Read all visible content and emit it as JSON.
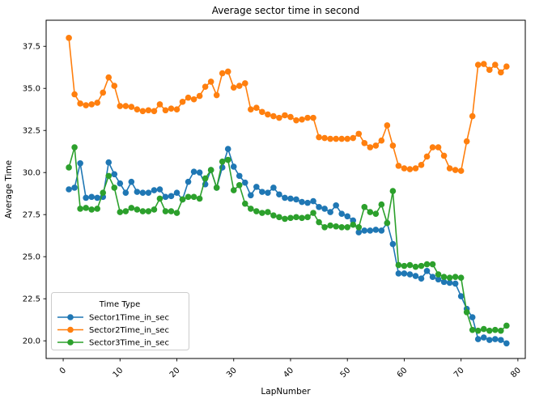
{
  "figure": {
    "title": "Average sector time in second",
    "xlabel": "LapNumber",
    "ylabel": "Average Time",
    "background_color": "#ffffff",
    "spine_color": "#000000"
  },
  "legend": {
    "title": "Time Type",
    "entries": [
      {
        "label": "Sector1Time_in_sec"
      },
      {
        "label": "Sector2Time_in_sec"
      },
      {
        "label": "Sector3Time_in_sec"
      }
    ]
  },
  "chart_data": {
    "type": "line",
    "title": "Average sector time in second",
    "xlabel": "LapNumber",
    "ylabel": "Average Time",
    "marker": "o",
    "grid": false,
    "legend_position": "lower left",
    "xlim": [
      -3.0,
      81.3
    ],
    "ylim": [
      18.95,
      39.05
    ],
    "x_ticks": [
      0,
      10,
      20,
      30,
      40,
      50,
      60,
      70,
      80
    ],
    "y_ticks": [
      "20.0",
      "22.5",
      "25.0",
      "27.5",
      "30.0",
      "32.5",
      "35.0",
      "37.5"
    ],
    "y_tick_values": [
      20.0,
      22.5,
      25.0,
      27.5,
      30.0,
      32.5,
      35.0,
      37.5
    ],
    "x": [
      1,
      2,
      3,
      4,
      5,
      6,
      7,
      8,
      9,
      10,
      11,
      12,
      13,
      14,
      15,
      16,
      17,
      18,
      19,
      20,
      21,
      22,
      23,
      24,
      25,
      26,
      27,
      28,
      29,
      30,
      31,
      32,
      33,
      34,
      35,
      36,
      37,
      38,
      39,
      40,
      41,
      42,
      43,
      44,
      45,
      46,
      47,
      48,
      49,
      50,
      51,
      52,
      53,
      54,
      55,
      56,
      57,
      58,
      59,
      60,
      61,
      62,
      63,
      64,
      65,
      66,
      67,
      68,
      69,
      70,
      71,
      72,
      73,
      74,
      75,
      76,
      77,
      78
    ],
    "series": [
      {
        "name": "Sector1Time_in_sec",
        "color": "#1f77b4",
        "values": [
          29.0,
          29.1,
          30.55,
          28.5,
          28.55,
          28.5,
          28.55,
          30.6,
          29.9,
          29.35,
          28.8,
          29.45,
          28.85,
          28.8,
          28.8,
          28.95,
          29.0,
          28.55,
          28.6,
          28.8,
          28.4,
          29.45,
          30.05,
          30.0,
          29.3,
          30.15,
          29.1,
          30.3,
          31.4,
          30.35,
          29.8,
          29.4,
          28.65,
          29.15,
          28.85,
          28.8,
          29.1,
          28.7,
          28.5,
          28.45,
          28.4,
          28.25,
          28.2,
          28.3,
          27.95,
          27.85,
          27.65,
          28.05,
          27.55,
          27.4,
          27.15,
          26.45,
          26.55,
          26.55,
          26.6,
          26.55,
          27.0,
          25.75,
          24.0,
          24.0,
          23.95,
          23.85,
          23.7,
          24.15,
          23.8,
          23.65,
          23.5,
          23.45,
          23.4,
          22.65,
          21.9,
          21.4,
          20.1,
          20.2,
          20.05,
          20.1,
          20.05,
          19.85
        ]
      },
      {
        "name": "Sector2Time_in_sec",
        "color": "#ff7f0e",
        "values": [
          38.0,
          34.65,
          34.1,
          34.0,
          34.05,
          34.15,
          34.75,
          35.65,
          35.15,
          33.95,
          33.95,
          33.9,
          33.75,
          33.65,
          33.7,
          33.65,
          34.05,
          33.7,
          33.8,
          33.75,
          34.2,
          34.45,
          34.35,
          34.55,
          35.1,
          35.4,
          34.6,
          35.9,
          36.0,
          35.05,
          35.15,
          35.3,
          33.75,
          33.85,
          33.6,
          33.45,
          33.35,
          33.25,
          33.4,
          33.3,
          33.1,
          33.15,
          33.25,
          33.25,
          32.1,
          32.05,
          32.0,
          32.0,
          32.0,
          32.0,
          32.05,
          32.3,
          31.75,
          31.5,
          31.6,
          31.9,
          32.8,
          31.6,
          30.4,
          30.25,
          30.2,
          30.25,
          30.45,
          30.95,
          31.5,
          31.5,
          31.0,
          30.25,
          30.15,
          30.1,
          31.85,
          33.35,
          36.4,
          36.45,
          36.1,
          36.4,
          35.95,
          36.3
        ]
      },
      {
        "name": "Sector3Time_in_sec",
        "color": "#2ca02c",
        "values": [
          30.3,
          31.5,
          27.85,
          27.9,
          27.8,
          27.85,
          28.8,
          29.8,
          29.1,
          27.65,
          27.7,
          27.9,
          27.8,
          27.7,
          27.7,
          27.8,
          28.45,
          27.7,
          27.7,
          27.6,
          28.4,
          28.55,
          28.55,
          28.45,
          29.65,
          30.15,
          29.1,
          30.65,
          30.75,
          28.95,
          29.25,
          28.15,
          27.85,
          27.7,
          27.6,
          27.65,
          27.45,
          27.35,
          27.25,
          27.3,
          27.35,
          27.3,
          27.35,
          27.6,
          27.05,
          26.75,
          26.85,
          26.8,
          26.75,
          26.75,
          26.9,
          26.75,
          27.95,
          27.65,
          27.55,
          28.1,
          27.0,
          28.9,
          24.5,
          24.45,
          24.5,
          24.4,
          24.45,
          24.55,
          24.55,
          23.95,
          23.8,
          23.75,
          23.8,
          23.75,
          21.7,
          20.65,
          20.6,
          20.7,
          20.6,
          20.65,
          20.6,
          20.9
        ]
      }
    ]
  }
}
